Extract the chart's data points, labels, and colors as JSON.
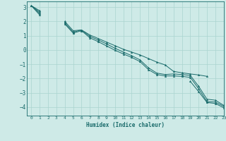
{
  "xlabel": "Humidex (Indice chaleur)",
  "xlim": [
    -0.5,
    23
  ],
  "ylim": [
    -4.6,
    3.4
  ],
  "yticks": [
    -4,
    -3,
    -2,
    -1,
    0,
    1,
    2,
    3
  ],
  "xticks": [
    0,
    1,
    2,
    3,
    4,
    5,
    6,
    7,
    8,
    9,
    10,
    11,
    12,
    13,
    14,
    15,
    16,
    17,
    18,
    19,
    20,
    21,
    22,
    23
  ],
  "bg_color": "#ceeae7",
  "grid_color": "#aad4d0",
  "line_color": "#1a6b6b",
  "lines": [
    [
      3.1,
      2.75,
      null,
      null,
      2.0,
      1.35,
      1.4,
      1.05,
      0.8,
      0.55,
      0.3,
      0.05,
      -0.15,
      -0.35,
      -0.6,
      -0.85,
      -1.05,
      -1.5,
      -1.6,
      -1.68,
      -1.75,
      -1.85,
      null,
      null
    ],
    [
      3.1,
      2.65,
      null,
      null,
      1.9,
      1.25,
      1.4,
      0.95,
      0.7,
      0.42,
      0.12,
      -0.15,
      -0.4,
      -0.7,
      -1.25,
      -1.62,
      -1.72,
      -1.68,
      -1.72,
      -1.78,
      -2.55,
      -3.45,
      -3.52,
      -3.88
    ],
    [
      3.1,
      2.55,
      null,
      null,
      1.82,
      1.18,
      1.35,
      0.85,
      0.58,
      0.28,
      -0.02,
      -0.28,
      -0.52,
      -0.82,
      -1.38,
      -1.72,
      -1.82,
      -1.82,
      -1.85,
      -1.92,
      -2.72,
      -3.62,
      -3.65,
      -3.95
    ],
    [
      3.1,
      2.45,
      null,
      null,
      null,
      null,
      null,
      null,
      null,
      null,
      null,
      null,
      null,
      null,
      null,
      null,
      null,
      null,
      null,
      -2.2,
      -2.92,
      -3.68,
      -3.75,
      -4.05
    ]
  ]
}
